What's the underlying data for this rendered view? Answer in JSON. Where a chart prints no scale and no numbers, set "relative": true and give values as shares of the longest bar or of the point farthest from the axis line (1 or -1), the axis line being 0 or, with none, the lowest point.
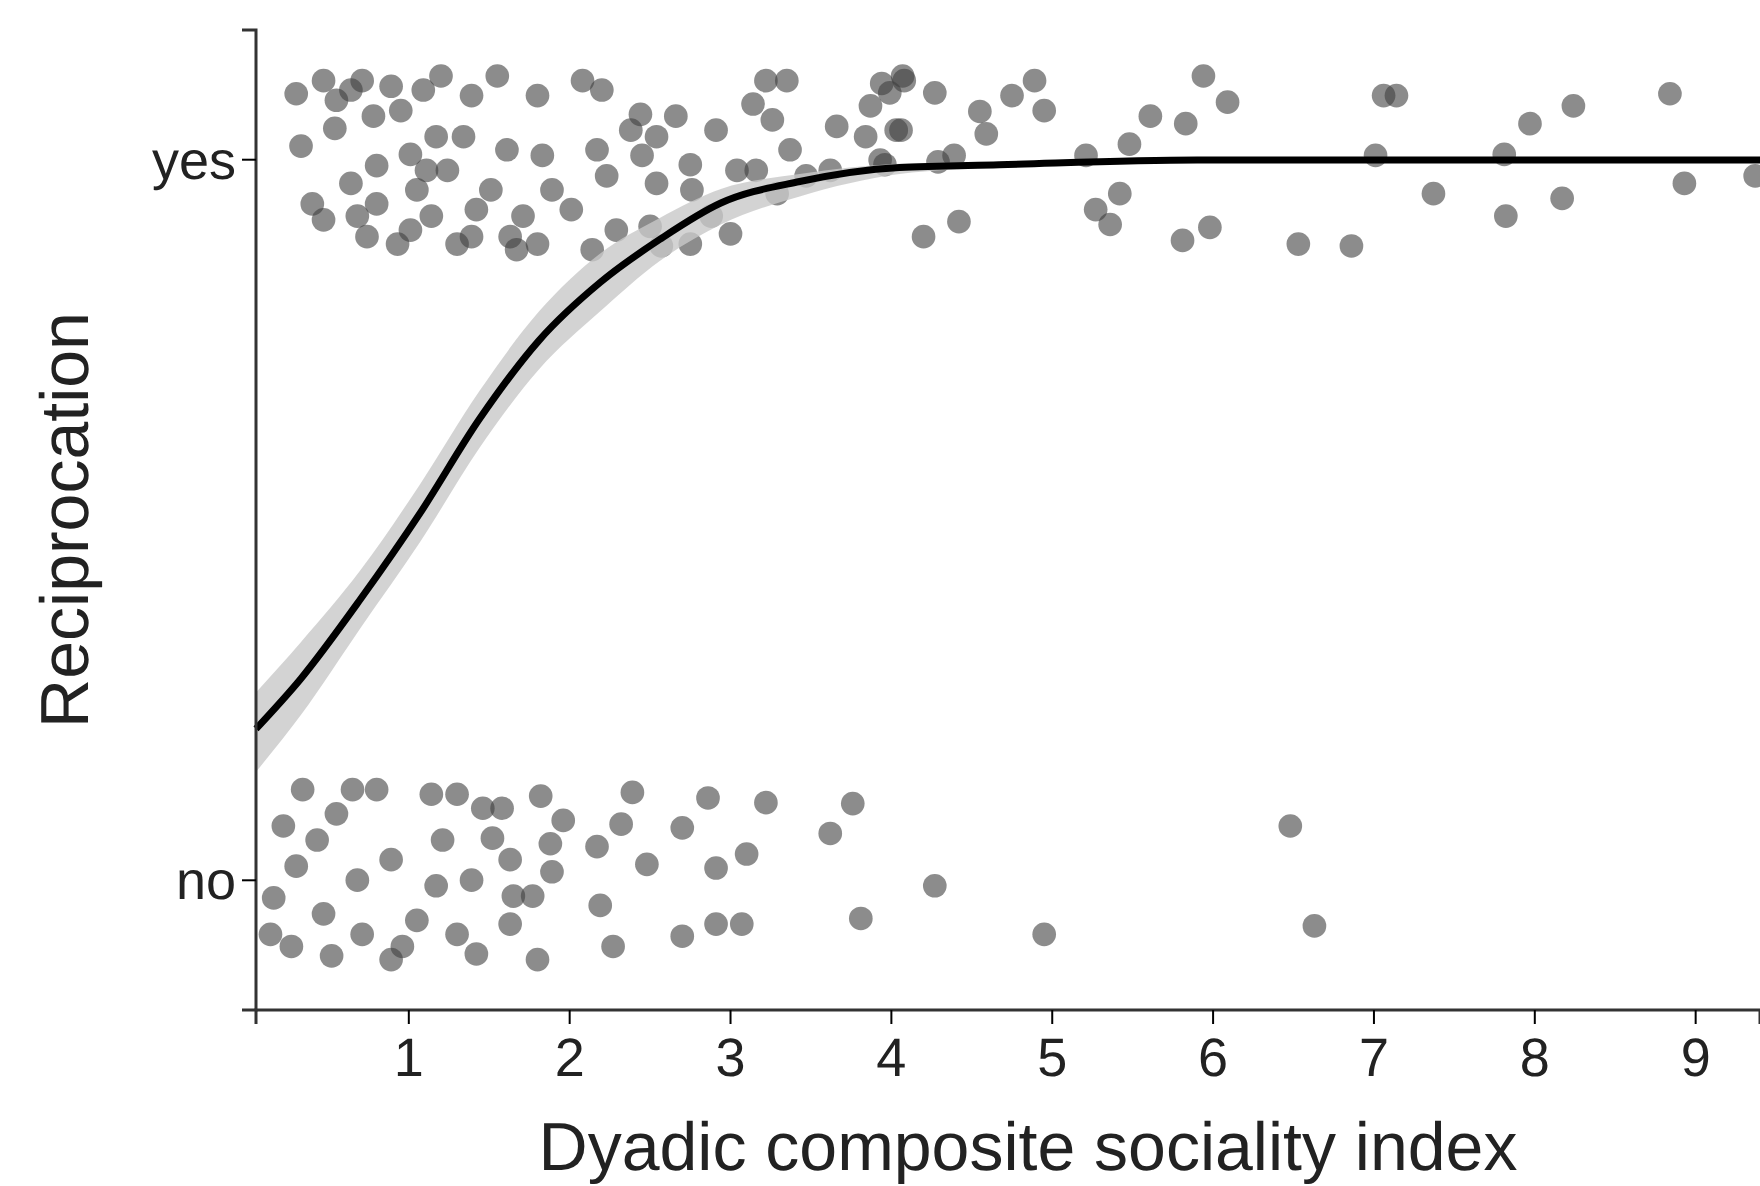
{
  "chart_data": {
    "type": "scatter",
    "xlabel": "Dyadic composite sociality index",
    "ylabel": "Reciprocation",
    "xlim": [
      0.05,
      9.4
    ],
    "xticks": [
      1,
      2,
      3,
      4,
      5,
      6,
      7,
      8,
      9
    ],
    "relative": true,
    "y_categories": [
      "yes",
      "no"
    ],
    "grid": false,
    "marker": "circle",
    "series": [
      {
        "type": "scatter",
        "color": "#404040",
        "x": [
          4.08,
          4.27,
          3.99,
          4.55,
          4.59,
          4.75,
          4.89,
          4.95,
          4.06,
          4.29,
          4.39,
          3.96,
          4.2,
          4.42,
          5.21,
          5.48,
          5.61,
          5.83,
          5.94,
          6.09,
          5.42,
          5.27,
          5.36,
          5.81,
          5.98,
          6.53,
          6.86,
          7.06,
          7.14,
          7.01,
          7.37,
          7.82,
          7.97,
          8.17,
          8.24,
          7.81,
          8.84,
          8.93,
          9.37,
          0.3,
          0.47,
          0.33,
          0.55,
          0.54,
          0.4,
          0.47,
          0.71,
          0.78,
          0.8,
          0.68,
          0.74,
          0.93,
          0.89,
          0.95,
          1.01,
          1.05,
          1.14,
          1.2,
          1.24,
          1.3,
          1.34,
          1.39,
          1.42,
          1.55,
          1.61,
          1.63,
          1.51,
          1.71,
          1.8,
          1.83,
          1.89,
          1.8,
          2.01,
          2.08,
          2.2,
          2.17,
          2.23,
          2.29,
          2.14,
          2.38,
          2.44,
          2.45,
          2.54,
          2.54,
          2.5,
          2.66,
          2.75,
          2.76,
          2.75,
          2.57,
          2.88,
          2.91,
          3.0,
          3.04,
          3.16,
          3.14,
          3.22,
          3.35,
          3.26,
          3.37,
          3.29,
          3.47,
          3.62,
          3.66,
          3.87,
          3.93,
          3.94,
          4.03,
          4.07,
          3.84,
          0.64,
          1.09,
          1.17,
          1.11,
          0.64,
          1.39,
          1.67,
          1.01,
          0.8,
          0.34,
          0.65,
          0.8,
          1.14,
          1.3,
          1.82,
          2.39,
          2.86,
          3.22,
          3.76,
          1.46,
          1.58,
          1.96,
          2.32,
          2.7,
          3.62,
          1.52,
          1.88,
          2.17,
          3.1,
          1.63,
          2.48,
          2.91,
          1.89,
          1.39,
          4.27,
          0.16,
          1.65,
          1.77,
          2.19,
          3.81,
          1.63,
          2.91,
          3.07,
          2.7,
          2.27,
          1.8,
          4.95,
          0.22,
          0.43,
          0.55,
          0.3,
          0.68,
          0.89,
          0.47,
          0.71,
          0.96,
          0.27,
          1.17,
          1.21,
          1.05,
          1.3,
          0.89,
          0.52,
          1.42,
          0.14,
          6.48,
          6.63
        ],
        "values": [
          0.995,
          0.982,
          0.982,
          0.962,
          0.938,
          0.979,
          0.995,
          0.963,
          0.942,
          0.908,
          0.915,
          0.905,
          0.828,
          0.844,
          0.915,
          0.927,
          0.957,
          0.949,
          1.0,
          0.972,
          0.874,
          0.857,
          0.841,
          0.824,
          0.838,
          0.82,
          0.818,
          0.979,
          0.979,
          0.915,
          0.874,
          0.85,
          0.949,
          0.869,
          0.968,
          0.916,
          0.981,
          0.885,
          0.893,
          0.981,
          0.995,
          0.925,
          0.974,
          0.944,
          0.863,
          0.846,
          0.995,
          0.957,
          0.904,
          0.85,
          0.828,
          0.82,
          0.989,
          0.963,
          0.916,
          0.878,
          0.85,
          1.0,
          0.899,
          0.82,
          0.935,
          0.979,
          0.857,
          1.0,
          0.921,
          0.828,
          0.878,
          0.85,
          0.979,
          0.915,
          0.878,
          0.82,
          0.857,
          0.995,
          0.985,
          0.921,
          0.893,
          0.835,
          0.814,
          0.942,
          0.959,
          0.915,
          0.935,
          0.885,
          0.839,
          0.957,
          0.905,
          0.878,
          0.82,
          0.818,
          0.85,
          0.942,
          0.831,
          0.899,
          0.899,
          0.97,
          0.995,
          0.995,
          0.953,
          0.921,
          0.874,
          0.893,
          0.899,
          0.946,
          0.968,
          0.91,
          0.992,
          0.942,
          1.0,
          0.935,
          0.985,
          0.985,
          0.935,
          0.899,
          0.885,
          0.828,
          0.814,
          0.835,
          0.863,
          0.236,
          0.236,
          0.236,
          0.231,
          0.231,
          0.229,
          0.233,
          0.227,
          0.222,
          0.221,
          0.216,
          0.216,
          0.203,
          0.199,
          0.195,
          0.189,
          0.184,
          0.178,
          0.175,
          0.167,
          0.161,
          0.156,
          0.152,
          0.148,
          0.139,
          0.133,
          0.12,
          0.122,
          0.122,
          0.112,
          0.098,
          0.092,
          0.092,
          0.092,
          0.079,
          0.068,
          0.054,
          0.081,
          0.197,
          0.182,
          0.21,
          0.154,
          0.139,
          0.161,
          0.103,
          0.081,
          0.068,
          0.068,
          0.133,
          0.182,
          0.096,
          0.081,
          0.054,
          0.058,
          0.06,
          0.081,
          0.197,
          0.09
        ]
      },
      {
        "type": "line",
        "color": "#000000",
        "marker": "none",
        "line_style": "solid",
        "x": [
          0.05,
          0.33,
          0.7,
          1.07,
          1.44,
          1.81,
          2.19,
          2.56,
          2.94,
          3.43,
          4.05,
          4.67,
          5.9,
          9.4
        ],
        "values": [
          0.301,
          0.355,
          0.44,
          0.532,
          0.633,
          0.717,
          0.779,
          0.825,
          0.864,
          0.887,
          0.902,
          0.905,
          0.91,
          0.91
        ],
        "lower": [
          0.255,
          0.316,
          0.409,
          0.501,
          0.602,
          0.686,
          0.748,
          0.802,
          0.841,
          0.871,
          0.895,
          0.902,
          0.908,
          0.909
        ],
        "upper": [
          0.34,
          0.394,
          0.471,
          0.563,
          0.663,
          0.748,
          0.81,
          0.848,
          0.879,
          0.895,
          0.906,
          0.908,
          0.91,
          0.91
        ]
      }
    ]
  }
}
